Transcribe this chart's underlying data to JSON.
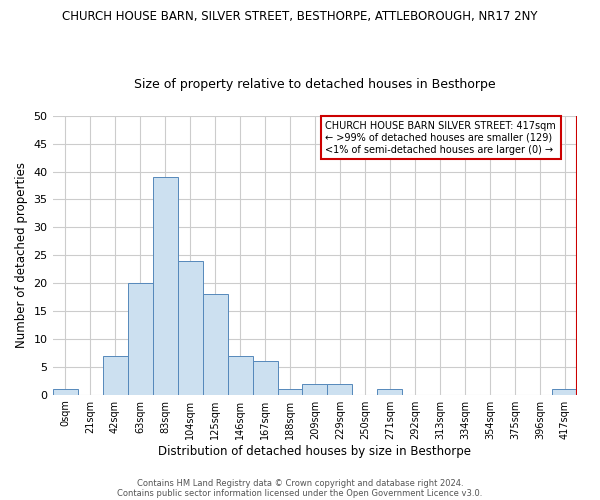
{
  "title": "CHURCH HOUSE BARN, SILVER STREET, BESTHORPE, ATTLEBOROUGH, NR17 2NY",
  "subtitle": "Size of property relative to detached houses in Besthorpe",
  "xlabel": "Distribution of detached houses by size in Besthorpe",
  "ylabel": "Number of detached properties",
  "bin_labels": [
    "0sqm",
    "21sqm",
    "42sqm",
    "63sqm",
    "83sqm",
    "104sqm",
    "125sqm",
    "146sqm",
    "167sqm",
    "188sqm",
    "209sqm",
    "229sqm",
    "250sqm",
    "271sqm",
    "292sqm",
    "313sqm",
    "334sqm",
    "354sqm",
    "375sqm",
    "396sqm",
    "417sqm"
  ],
  "bar_heights": [
    1,
    0,
    7,
    20,
    39,
    24,
    18,
    7,
    6,
    1,
    2,
    2,
    0,
    1,
    0,
    0,
    0,
    0,
    0,
    0,
    1
  ],
  "bar_color": "#cce0f0",
  "bar_edge_color": "#5588bb",
  "grid_color": "#cccccc",
  "red_line_index": 20,
  "annotation_text": "CHURCH HOUSE BARN SILVER STREET: 417sqm\n← >99% of detached houses are smaller (129)\n<1% of semi-detached houses are larger (0) →",
  "annotation_box_color": "#ffffff",
  "annotation_border_color": "#cc0000",
  "red_line_color": "#cc0000",
  "ylim": [
    0,
    50
  ],
  "yticks": [
    0,
    5,
    10,
    15,
    20,
    25,
    30,
    35,
    40,
    45,
    50
  ],
  "footer_line1": "Contains HM Land Registry data © Crown copyright and database right 2024.",
  "footer_line2": "Contains public sector information licensed under the Open Government Licence v3.0."
}
